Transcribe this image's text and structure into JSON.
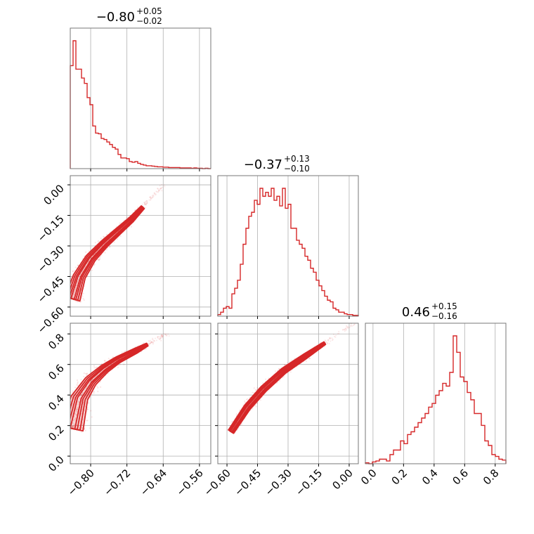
{
  "chart_data": {
    "type": "corner",
    "color": "#d62728",
    "grid": true,
    "parameters": [
      {
        "range": [
          -0.845,
          -0.535
        ],
        "ticks": [
          "-0.80",
          "-0.72",
          "-0.64",
          "-0.56"
        ],
        "tick_values": [
          -0.8,
          -0.72,
          -0.64,
          -0.56
        ],
        "title": {
          "median": "-0.80",
          "plus": "+0.05",
          "minus": "-0.02"
        }
      },
      {
        "range": [
          -0.645,
          0.045
        ],
        "ticks": [
          "-0.60",
          "-0.45",
          "-0.30",
          "-0.15",
          "0.00"
        ],
        "tick_values": [
          -0.6,
          -0.45,
          -0.3,
          -0.15,
          0.0
        ],
        "title": {
          "median": "-0.37",
          "plus": "+0.13",
          "minus": "-0.10"
        }
      },
      {
        "range": [
          -0.05,
          0.87
        ],
        "ticks": [
          "0.0",
          "0.2",
          "0.4",
          "0.6",
          "0.8"
        ],
        "tick_values": [
          0.0,
          0.2,
          0.4,
          0.6,
          0.8
        ],
        "title": {
          "median": "0.46",
          "plus": "+0.15",
          "minus": "-0.16"
        }
      }
    ],
    "histograms": [
      {
        "param": 0,
        "bins": [
          -0.845,
          -0.535
        ],
        "counts": [
          290,
          360,
          280,
          280,
          255,
          240,
          200,
          180,
          120,
          100,
          98,
          85,
          82,
          75,
          68,
          60,
          55,
          40,
          30,
          30,
          28,
          20,
          18,
          20,
          15,
          12,
          10,
          8,
          8,
          7,
          6,
          5,
          5,
          4,
          4,
          3,
          3,
          3,
          3,
          2,
          2,
          2,
          2,
          1,
          2,
          1,
          1,
          0,
          1,
          0
        ]
      },
      {
        "param": 1,
        "bins": [
          -0.645,
          0.045
        ],
        "counts": [
          2,
          5,
          10,
          12,
          10,
          28,
          35,
          45,
          65,
          90,
          110,
          125,
          130,
          145,
          140,
          160,
          150,
          155,
          150,
          160,
          145,
          150,
          138,
          160,
          135,
          140,
          110,
          110,
          95,
          90,
          85,
          75,
          70,
          60,
          55,
          45,
          38,
          32,
          25,
          20,
          18,
          10,
          8,
          5,
          5,
          3,
          2,
          2,
          1,
          1
        ]
      },
      {
        "param": 2,
        "bins": [
          -0.05,
          0.87
        ],
        "counts": [
          1,
          0,
          2,
          3,
          5,
          5,
          3,
          10,
          15,
          15,
          25,
          22,
          32,
          35,
          40,
          45,
          50,
          55,
          62,
          66,
          75,
          80,
          88,
          85,
          100,
          140,
          122,
          95,
          90,
          78,
          70,
          55,
          55,
          42,
          25,
          20,
          10,
          8,
          5,
          4
        ]
      }
    ],
    "pairs": [
      {
        "x_param": 0,
        "y_param": 1,
        "ridge": [
          [
            -0.84,
            -0.56
          ],
          [
            -0.825,
            -0.45
          ],
          [
            -0.8,
            -0.36
          ],
          [
            -0.77,
            -0.29
          ],
          [
            -0.74,
            -0.23
          ],
          [
            -0.71,
            -0.17
          ],
          [
            -0.685,
            -0.11
          ]
        ],
        "width": [
          0.075,
          0.06,
          0.05,
          0.04,
          0.034,
          0.028,
          0.02
        ]
      },
      {
        "x_param": 0,
        "y_param": 2,
        "ridge": [
          [
            -0.84,
            0.18
          ],
          [
            -0.825,
            0.38
          ],
          [
            -0.8,
            0.49
          ],
          [
            -0.77,
            0.57
          ],
          [
            -0.74,
            0.63
          ],
          [
            -0.7,
            0.69
          ],
          [
            -0.675,
            0.73
          ]
        ],
        "width": [
          0.14,
          0.11,
          0.08,
          0.06,
          0.045,
          0.035,
          0.02
        ]
      },
      {
        "x_param": 1,
        "y_param": 2,
        "ridge": [
          [
            -0.58,
            0.16
          ],
          [
            -0.5,
            0.32
          ],
          [
            -0.42,
            0.44
          ],
          [
            -0.32,
            0.56
          ],
          [
            -0.22,
            0.65
          ],
          [
            -0.12,
            0.74
          ]
        ],
        "width": [
          0.04,
          0.045,
          0.045,
          0.04,
          0.035,
          0.02
        ]
      }
    ]
  }
}
